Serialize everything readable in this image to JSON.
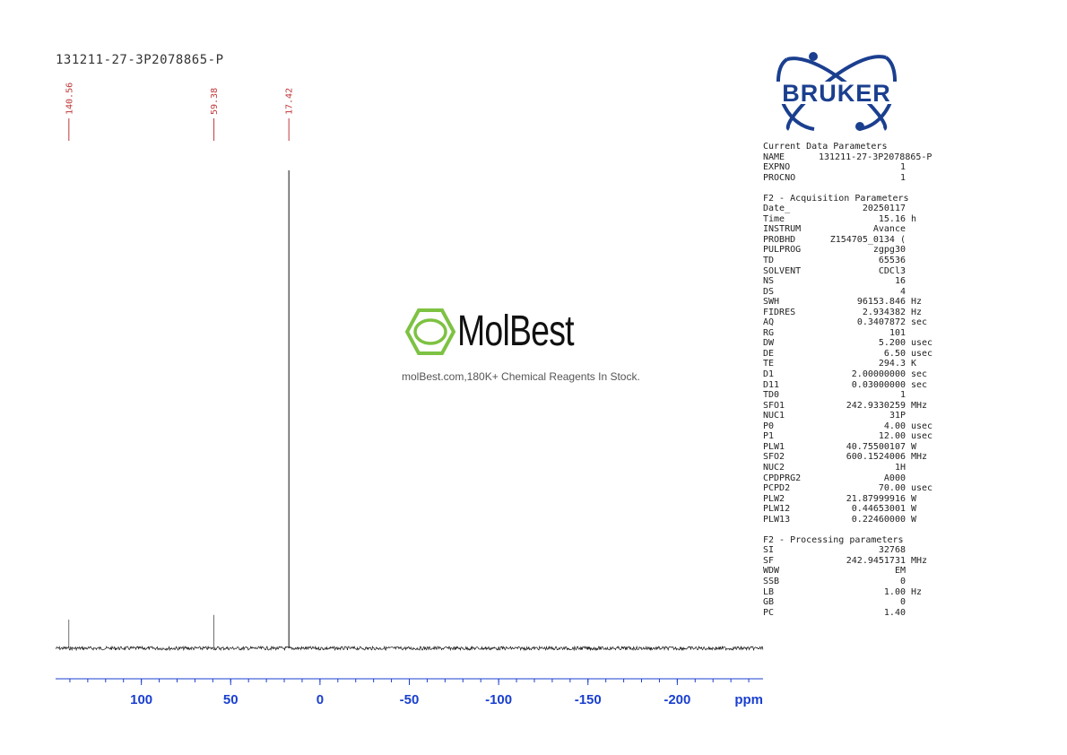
{
  "title": "131211-27-3P2078865-P",
  "chart_data": {
    "type": "line",
    "xlabel": "ppm",
    "xlim": [
      148,
      -248
    ],
    "x_axis_reversed": true,
    "ticks": [
      100,
      50,
      0,
      -50,
      -100,
      -150,
      -200
    ],
    "tick_labels": [
      "100",
      "50",
      "0",
      "-50",
      "-100",
      "-150",
      "-200"
    ],
    "peaks": [
      {
        "ppm": 140.56,
        "label": "140.56",
        "rel_height": 0.06
      },
      {
        "ppm": 59.38,
        "label": "59.38",
        "rel_height": 0.07
      },
      {
        "ppm": 17.42,
        "label": "17.42",
        "rel_height": 1.0
      }
    ],
    "colors": {
      "spectrum": "#111111",
      "peak_label": "#c0393b",
      "axis": "#1a3fcf"
    }
  },
  "watermark": {
    "name": "MolBest",
    "tagline": "molBest.com,180K+ Chemical Reagents In Stock.",
    "color": "#7dc242"
  },
  "brand": {
    "logo_text": "BRUKER",
    "color": "#1b3f8f"
  },
  "params": {
    "sections": [
      {
        "title": "Current Data Parameters",
        "rows": [
          {
            "k": "NAME",
            "v": "131211-27-3P2078865-P",
            "u": ""
          },
          {
            "k": "EXPNO",
            "v": "1",
            "u": ""
          },
          {
            "k": "PROCNO",
            "v": "1",
            "u": ""
          }
        ]
      },
      {
        "title": "F2 - Acquisition Parameters",
        "rows": [
          {
            "k": "Date_",
            "v": "20250117",
            "u": ""
          },
          {
            "k": "Time",
            "v": "15.16",
            "u": "h"
          },
          {
            "k": "INSTRUM",
            "v": "Avance",
            "u": ""
          },
          {
            "k": "PROBHD",
            "v": "Z154705_0134 (",
            "u": ""
          },
          {
            "k": "PULPROG",
            "v": "zgpg30",
            "u": ""
          },
          {
            "k": "TD",
            "v": "65536",
            "u": ""
          },
          {
            "k": "SOLVENT",
            "v": "CDCl3",
            "u": ""
          },
          {
            "k": "NS",
            "v": "16",
            "u": ""
          },
          {
            "k": "DS",
            "v": "4",
            "u": ""
          },
          {
            "k": "SWH",
            "v": "96153.846",
            "u": "Hz"
          },
          {
            "k": "FIDRES",
            "v": "2.934382",
            "u": "Hz"
          },
          {
            "k": "AQ",
            "v": "0.3407872",
            "u": "sec"
          },
          {
            "k": "RG",
            "v": "101",
            "u": ""
          },
          {
            "k": "DW",
            "v": "5.200",
            "u": "usec"
          },
          {
            "k": "DE",
            "v": "6.50",
            "u": "usec"
          },
          {
            "k": "TE",
            "v": "294.3",
            "u": "K"
          },
          {
            "k": "D1",
            "v": "2.00000000",
            "u": "sec"
          },
          {
            "k": "D11",
            "v": "0.03000000",
            "u": "sec"
          },
          {
            "k": "TD0",
            "v": "1",
            "u": ""
          },
          {
            "k": "SFO1",
            "v": "242.9330259",
            "u": "MHz"
          },
          {
            "k": "NUC1",
            "v": "31P",
            "u": ""
          },
          {
            "k": "P0",
            "v": "4.00",
            "u": "usec"
          },
          {
            "k": "P1",
            "v": "12.00",
            "u": "usec"
          },
          {
            "k": "PLW1",
            "v": "40.75500107",
            "u": "W"
          },
          {
            "k": "SFO2",
            "v": "600.1524006",
            "u": "MHz"
          },
          {
            "k": "NUC2",
            "v": "1H",
            "u": ""
          },
          {
            "k": "CPDPRG2",
            "v": "A000",
            "u": ""
          },
          {
            "k": "PCPD2",
            "v": "70.00",
            "u": "usec"
          },
          {
            "k": "PLW2",
            "v": "21.87999916",
            "u": "W"
          },
          {
            "k": "PLW12",
            "v": "0.44653001",
            "u": "W"
          },
          {
            "k": "PLW13",
            "v": "0.22460000",
            "u": "W"
          }
        ]
      },
      {
        "title": "F2 - Processing parameters",
        "rows": [
          {
            "k": "SI",
            "v": "32768",
            "u": ""
          },
          {
            "k": "SF",
            "v": "242.9451731",
            "u": "MHz"
          },
          {
            "k": "WDW",
            "v": "EM",
            "u": ""
          },
          {
            "k": "SSB",
            "v": "0",
            "u": ""
          },
          {
            "k": "LB",
            "v": "1.00",
            "u": "Hz"
          },
          {
            "k": "GB",
            "v": "0",
            "u": ""
          },
          {
            "k": "PC",
            "v": "1.40",
            "u": ""
          }
        ]
      }
    ]
  }
}
